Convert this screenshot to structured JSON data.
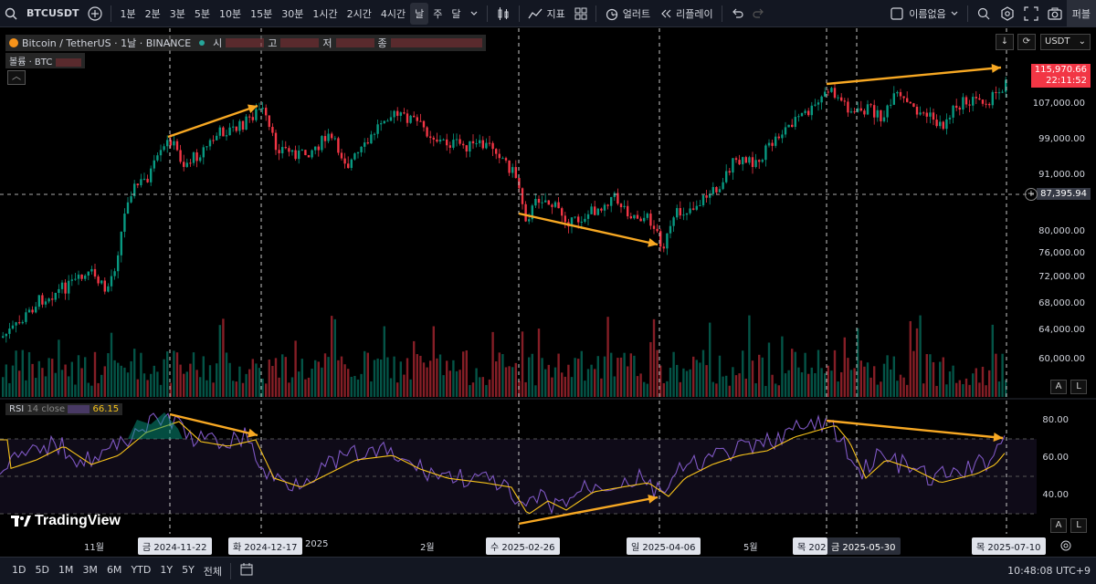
{
  "toolbar": {
    "symbol": "BTCUSDT",
    "intervals": [
      "1분",
      "2분",
      "3분",
      "5분",
      "10분",
      "15분",
      "30분",
      "1시간",
      "2시간",
      "4시간",
      "날",
      "주",
      "달"
    ],
    "active_interval": "날",
    "indicators_label": "지표",
    "alert_label": "얼러트",
    "replay_label": "리플레이",
    "layout_name": "이름없음",
    "publish_label": "퍼블"
  },
  "legend": {
    "title": "Bitcoin / TetherUS · 1날 · BINANCE",
    "open_label": "시",
    "high_label": "고",
    "low_label": "저",
    "close_label": "종",
    "volume_label": "볼륨 · BTC"
  },
  "rsi_legend": {
    "label": "RSI",
    "params": "14 close",
    "value": "66.15"
  },
  "currency": "USDT",
  "price_axis": [
    "107,000.00",
    "99,000.00",
    "91,000.00",
    "80,000.00",
    "76,000.00",
    "72,000.00",
    "68,000.00",
    "64,000.00",
    "60,000.00"
  ],
  "current_price": "115,970.66",
  "countdown": "22:11:52",
  "crosshair_price": "87,395.94",
  "rsi_axis": [
    "80.00",
    "60.00",
    "40.00"
  ],
  "time_axis": {
    "months": [
      "11월",
      "2025",
      "2월",
      "5월"
    ],
    "highlighted_dates": [
      "금 2024-11-22",
      "화 2024-12-17",
      "수 2025-02-26",
      "일 2025-04-06",
      "금 2025-05-30",
      "목 2025-07-10"
    ],
    "partial_date": "목 202"
  },
  "bottom_bar": {
    "ranges": [
      "1D",
      "5D",
      "1M",
      "3M",
      "6M",
      "YTD",
      "1Y",
      "5Y",
      "전체"
    ],
    "clock": "10:48:08 UTC+9"
  },
  "branding": "TradingView",
  "colors": {
    "up": "#089981",
    "down": "#f23645",
    "arrow": "#f7a823",
    "rsi": "#7e57c2",
    "rsi_ma": "#f7c31a"
  }
}
